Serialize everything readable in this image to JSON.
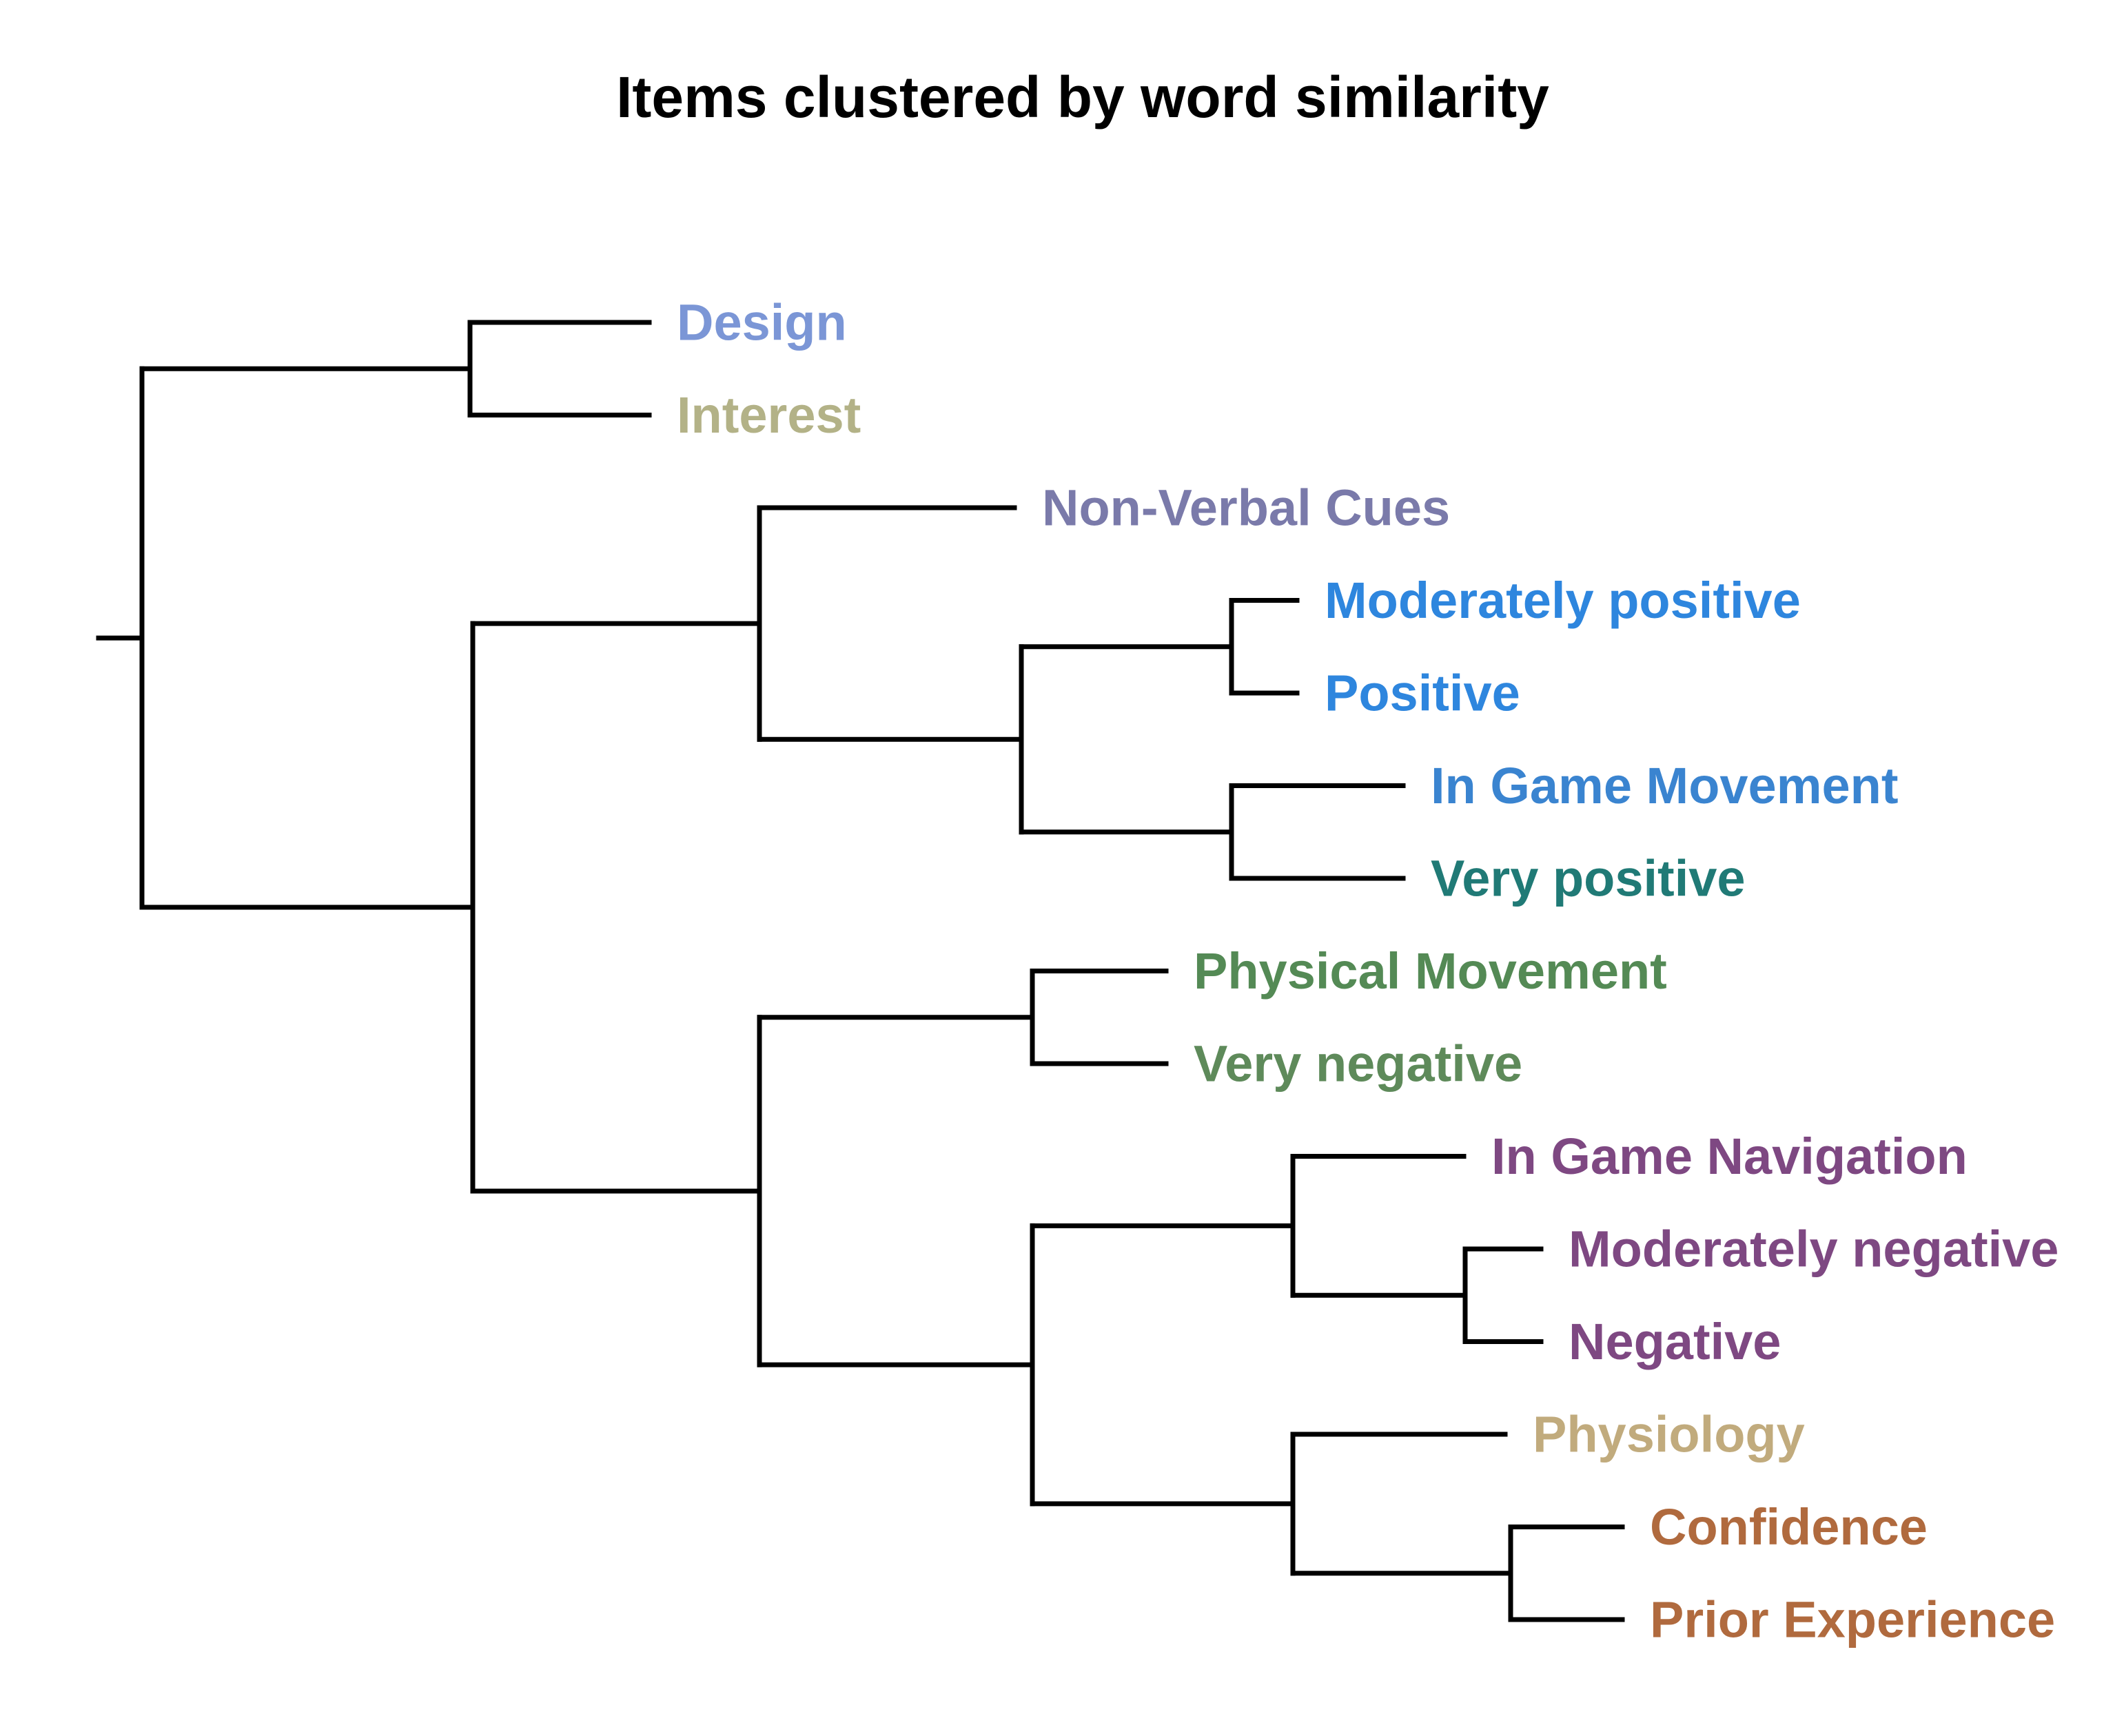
{
  "title": "Items clustered by word similarity",
  "leaves": [
    {
      "id": "design",
      "label": "Design",
      "color": "#7b96d6"
    },
    {
      "id": "interest",
      "label": "Interest",
      "color": "#b3b287"
    },
    {
      "id": "nonverbal",
      "label": "Non-Verbal Cues",
      "color": "#7a7aaa"
    },
    {
      "id": "modpos",
      "label": "Moderately positive",
      "color": "#2e86de"
    },
    {
      "id": "positive",
      "label": "Positive",
      "color": "#2e86de"
    },
    {
      "id": "ingamemove",
      "label": "In Game Movement",
      "color": "#3a84d0"
    },
    {
      "id": "verypos",
      "label": "Very positive",
      "color": "#207a76"
    },
    {
      "id": "physmove",
      "label": "Physical Movement",
      "color": "#548a55"
    },
    {
      "id": "veryneg",
      "label": "Very negative",
      "color": "#5e8a5a"
    },
    {
      "id": "ingamenav",
      "label": "In Game Navigation",
      "color": "#7e4882"
    },
    {
      "id": "modneg",
      "label": "Moderately negative",
      "color": "#7e4882"
    },
    {
      "id": "negative",
      "label": "Negative",
      "color": "#7e4882"
    },
    {
      "id": "physiology",
      "label": "Physiology",
      "color": "#c1ab7d"
    },
    {
      "id": "confidence",
      "label": "Confidence",
      "color": "#b06a3e"
    },
    {
      "id": "prior",
      "label": "Prior Experience",
      "color": "#b06a3e"
    }
  ],
  "tree": {
    "children": [
      {
        "children": [
          "design",
          "interest"
        ]
      },
      {
        "children": [
          {
            "children": [
              "nonverbal",
              {
                "children": [
                  {
                    "children": [
                      "modpos",
                      "positive"
                    ]
                  },
                  {
                    "children": [
                      "ingamemove",
                      "verypos"
                    ]
                  }
                ]
              }
            ]
          },
          {
            "children": [
              {
                "children": [
                  "physmove",
                  "veryneg"
                ]
              },
              {
                "children": [
                  {
                    "children": [
                      "ingamenav",
                      {
                        "children": [
                          "modneg",
                          "negative"
                        ]
                      }
                    ]
                  },
                  {
                    "children": [
                      "physiology",
                      {
                        "children": [
                          "confidence",
                          "prior"
                        ]
                      }
                    ]
                  }
                ]
              }
            ]
          }
        ]
      }
    ]
  }
}
